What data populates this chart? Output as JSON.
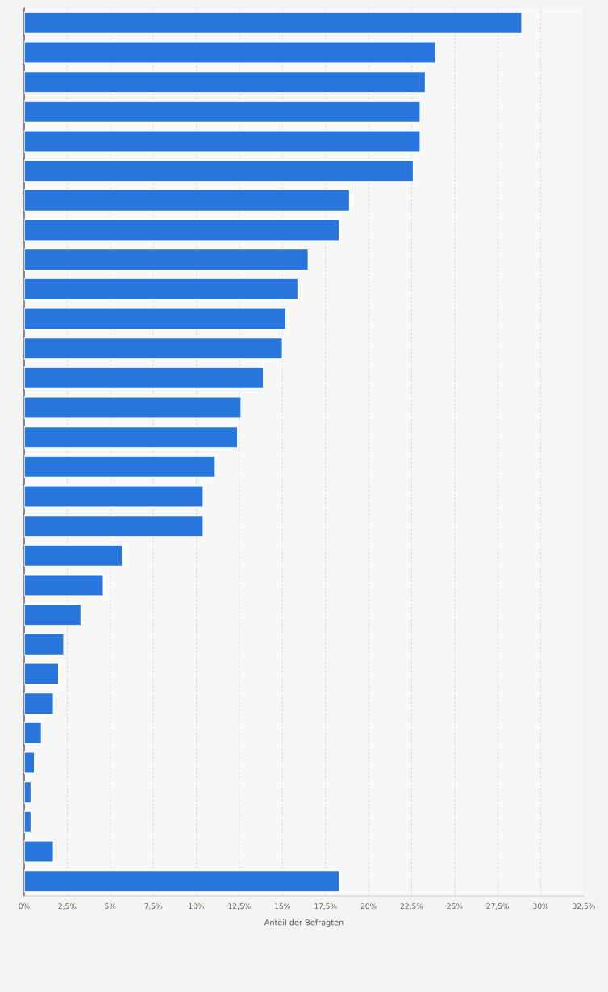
{
  "chart_data": {
    "type": "bar",
    "orientation": "horizontal",
    "xlabel": "Anteil der Befragten",
    "categories": [
      null,
      null,
      null,
      null,
      null,
      null,
      null,
      null,
      null,
      null,
      null,
      null,
      null,
      null,
      null,
      null,
      null,
      null,
      null,
      null,
      null,
      null,
      null,
      null,
      null,
      null,
      null,
      null,
      null,
      null
    ],
    "values": [
      28.9,
      23.9,
      23.3,
      23.0,
      23.0,
      22.6,
      18.9,
      18.3,
      16.5,
      15.9,
      15.2,
      15.0,
      13.9,
      12.6,
      12.4,
      11.1,
      10.4,
      10.4,
      5.7,
      4.6,
      3.3,
      2.3,
      2.0,
      1.7,
      1.0,
      0.6,
      0.4,
      0.4,
      1.7,
      18.3
    ],
    "color": "#2876dd",
    "xlim": [
      0,
      32.5
    ],
    "xticks": [
      {
        "value": 0,
        "label": "0%"
      },
      {
        "value": 2.5,
        "label": "2,5%"
      },
      {
        "value": 5,
        "label": "5%"
      },
      {
        "value": 7.5,
        "label": "7,5%"
      },
      {
        "value": 10,
        "label": "10%"
      },
      {
        "value": 12.5,
        "label": "12,5%"
      },
      {
        "value": 15,
        "label": "15%"
      },
      {
        "value": 17.5,
        "label": "17,5%"
      },
      {
        "value": 20,
        "label": "20%"
      },
      {
        "value": 22.5,
        "label": "22,5%"
      },
      {
        "value": 25,
        "label": "25%"
      },
      {
        "value": 27.5,
        "label": "27,5%"
      },
      {
        "value": 30,
        "label": "30%"
      },
      {
        "value": 32.5,
        "label": "32,5%"
      }
    ],
    "grid": "x",
    "tick_labels": "x"
  }
}
